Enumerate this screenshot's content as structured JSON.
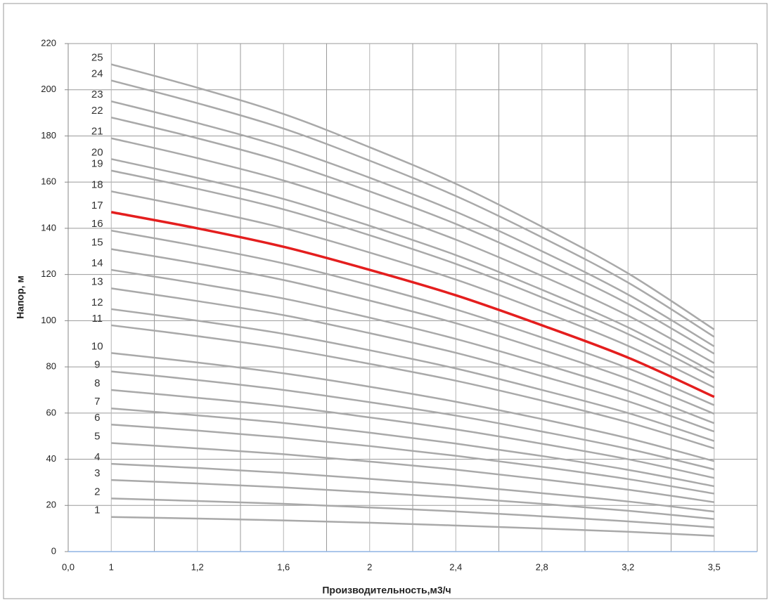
{
  "chart_data": {
    "type": "line",
    "x_title": "Производительность,м3/ч",
    "y_title": "Напор, м",
    "x_origin_label": "0,0",
    "categories": [
      "1",
      "1,2",
      "1,6",
      "2",
      "2,4",
      "2,8",
      "3,2",
      "3,5"
    ],
    "ylim": [
      0,
      220
    ],
    "yticks": [
      0,
      20,
      40,
      60,
      80,
      100,
      120,
      140,
      160,
      180,
      200,
      220
    ],
    "grid": true,
    "series": [
      {
        "name": "1",
        "color": "#a9a9a9",
        "values": [
          15,
          14.3,
          13.5,
          12.5,
          11.3,
          10,
          8.6,
          6.8
        ]
      },
      {
        "name": "2",
        "color": "#a9a9a9",
        "values": [
          23,
          21.9,
          20.7,
          19.1,
          17.4,
          15.3,
          13.1,
          10.5
        ]
      },
      {
        "name": "3",
        "color": "#a9a9a9",
        "values": [
          31,
          29.5,
          27.8,
          25.7,
          23.4,
          20.7,
          17.7,
          14.1
        ]
      },
      {
        "name": "4",
        "color": "#a9a9a9",
        "values": [
          38,
          36.2,
          34.1,
          31.5,
          28.7,
          25.3,
          21.7,
          17.3
        ]
      },
      {
        "name": "5",
        "color": "#a9a9a9",
        "values": [
          47,
          44.7,
          42.2,
          39.0,
          35.5,
          31.3,
          26.8,
          21.4
        ]
      },
      {
        "name": "6",
        "color": "#a9a9a9",
        "values": [
          55,
          52.4,
          49.4,
          45.7,
          41.5,
          36.7,
          31.4,
          25.1
        ]
      },
      {
        "name": "7",
        "color": "#a9a9a9",
        "values": [
          62,
          59.0,
          55.7,
          51.5,
          46.8,
          41.4,
          35.4,
          28.3
        ]
      },
      {
        "name": "8",
        "color": "#a9a9a9",
        "values": [
          70,
          66.6,
          62.9,
          58.1,
          52.9,
          46.7,
          40.0,
          31.9
        ]
      },
      {
        "name": "9",
        "color": "#a9a9a9",
        "values": [
          78,
          74.3,
          70.0,
          64.7,
          58.9,
          52.0,
          44.5,
          35.6
        ]
      },
      {
        "name": "10",
        "color": "#a9a9a9",
        "values": [
          86,
          81.9,
          77.2,
          71.4,
          64.9,
          57.4,
          49.1,
          39.2
        ]
      },
      {
        "name": "11",
        "color": "#a9a9a9",
        "values": [
          98,
          93.3,
          88.0,
          81.3,
          74.0,
          65.4,
          56.0,
          44.7
        ]
      },
      {
        "name": "12",
        "color": "#a9a9a9",
        "values": [
          105,
          100,
          94.3,
          87.2,
          79.3,
          70.0,
          60.0,
          47.9
        ]
      },
      {
        "name": "13",
        "color": "#a9a9a9",
        "values": [
          114,
          108.5,
          102.4,
          94.6,
          86.1,
          76.0,
          65.1,
          52.0
        ]
      },
      {
        "name": "14",
        "color": "#a9a9a9",
        "values": [
          122,
          116.1,
          109.6,
          101.3,
          92.1,
          81.4,
          69.7,
          55.6
        ]
      },
      {
        "name": "15",
        "color": "#a9a9a9",
        "values": [
          131,
          124.7,
          117.6,
          108.7,
          98.9,
          87.4,
          74.8,
          59.7
        ]
      },
      {
        "name": "16",
        "color": "#a9a9a9",
        "values": [
          139,
          132.3,
          124.8,
          115.4,
          104.9,
          92.7,
          79.4,
          63.4
        ]
      },
      {
        "name": "17",
        "color": "#e41e1e",
        "values": [
          147,
          140,
          132,
          122,
          111,
          98,
          84,
          67
        ]
      },
      {
        "name": "18",
        "color": "#a9a9a9",
        "values": [
          156,
          148.5,
          140.1,
          129.5,
          117.8,
          104.1,
          89.1,
          71.1
        ]
      },
      {
        "name": "19",
        "color": "#a9a9a9",
        "values": [
          165,
          157.1,
          148.2,
          137.0,
          124.6,
          110.1,
          94.2,
          75.2
        ]
      },
      {
        "name": "20",
        "color": "#a9a9a9",
        "values": [
          170,
          161.8,
          152.7,
          141.1,
          128.4,
          113.4,
          97.1,
          77.5
        ]
      },
      {
        "name": "21",
        "color": "#a9a9a9",
        "values": [
          179,
          170.4,
          160.7,
          148.6,
          135.1,
          119.4,
          102.2,
          81.6
        ]
      },
      {
        "name": "22",
        "color": "#a9a9a9",
        "values": [
          188,
          179.0,
          168.8,
          156.0,
          141.9,
          125.4,
          107.3,
          85.7
        ]
      },
      {
        "name": "23",
        "color": "#a9a9a9",
        "values": [
          195,
          185.6,
          175.1,
          161.9,
          147.2,
          130.1,
          111.3,
          88.9
        ]
      },
      {
        "name": "24",
        "color": "#a9a9a9",
        "values": [
          204,
          194.2,
          183.2,
          169.3,
          154.0,
          136.1,
          116.5,
          93.0
        ]
      },
      {
        "name": "25",
        "color": "#a9a9a9",
        "values": [
          211,
          200.9,
          189.5,
          175.1,
          159.3,
          140.7,
          120.5,
          96.2
        ]
      }
    ]
  }
}
